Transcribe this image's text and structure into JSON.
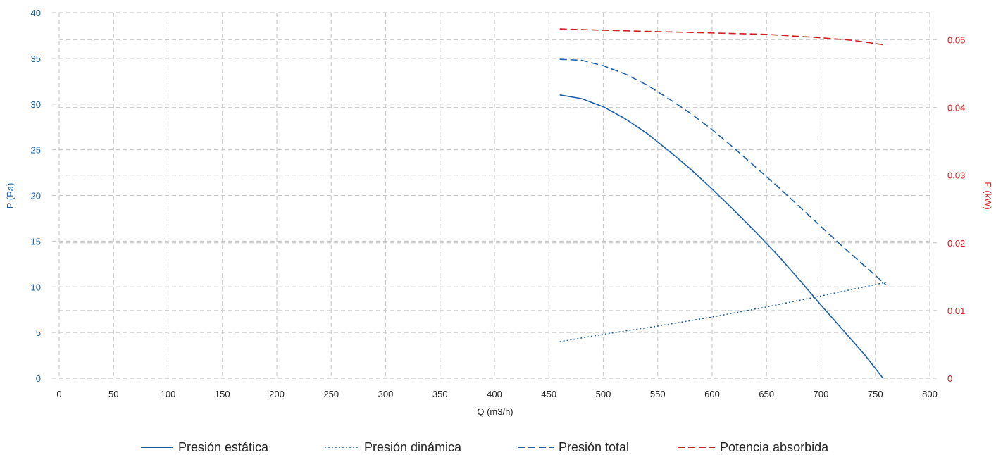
{
  "chart_data": {
    "type": "line",
    "xlabel": "Q (m3/h)",
    "ylabel": "P (Pa)",
    "y2label": "P (kW)",
    "xlim": [
      0,
      800
    ],
    "ylim": [
      0,
      40
    ],
    "y2lim": [
      0,
      0.054
    ],
    "x_ticks": [
      "0",
      "50",
      "100",
      "150",
      "200",
      "250",
      "300",
      "350",
      "400",
      "450",
      "500",
      "550",
      "600",
      "650",
      "700",
      "750",
      "800"
    ],
    "y_ticks": [
      "0",
      "5",
      "10",
      "15",
      "20",
      "25",
      "30",
      "35",
      "40"
    ],
    "y2_ticks": [
      "0",
      "0.01",
      "0.02",
      "0.03",
      "0.04",
      "0.05"
    ],
    "grid": true,
    "legend_position": "bottom",
    "colors": {
      "left_axis": "#1a5fa8",
      "right_axis": "#cc2222",
      "pressure": "#1a5fa8",
      "power": "#cc2222",
      "grid": "#cccccc"
    },
    "series": [
      {
        "name": "Presión estática",
        "axis": "left",
        "style": "solid",
        "color": "#1a5fa8",
        "x": [
          460,
          480,
          500,
          520,
          540,
          560,
          580,
          600,
          620,
          640,
          660,
          680,
          700,
          720,
          740,
          757
        ],
        "y": [
          31.0,
          30.6,
          29.7,
          28.4,
          26.8,
          24.9,
          22.9,
          20.7,
          18.4,
          16.0,
          13.5,
          10.8,
          8.0,
          5.3,
          2.6,
          0.0
        ]
      },
      {
        "name": "Presión dinámica",
        "axis": "left",
        "style": "dotted",
        "color": "#1a5fa8",
        "x": [
          460,
          500,
          550,
          600,
          650,
          700,
          760
        ],
        "y": [
          4.0,
          4.8,
          5.7,
          6.7,
          7.8,
          9.0,
          10.5
        ]
      },
      {
        "name": "Presión total",
        "axis": "left",
        "style": "dashed",
        "color": "#1a5fa8",
        "x": [
          460,
          480,
          500,
          520,
          540,
          560,
          580,
          600,
          620,
          640,
          660,
          680,
          700,
          720,
          740,
          760
        ],
        "y": [
          34.9,
          34.8,
          34.2,
          33.3,
          32.1,
          30.6,
          29.0,
          27.2,
          25.2,
          23.1,
          21.0,
          18.8,
          16.6,
          14.4,
          12.3,
          10.2
        ]
      },
      {
        "name": "Potencia absorbida",
        "axis": "right",
        "style": "dashed",
        "color": "#cc2222",
        "x": [
          460,
          500,
          550,
          600,
          650,
          700,
          730,
          760
        ],
        "y": [
          0.0516,
          0.0514,
          0.0512,
          0.051,
          0.0508,
          0.0503,
          0.0499,
          0.0492
        ]
      }
    ]
  }
}
